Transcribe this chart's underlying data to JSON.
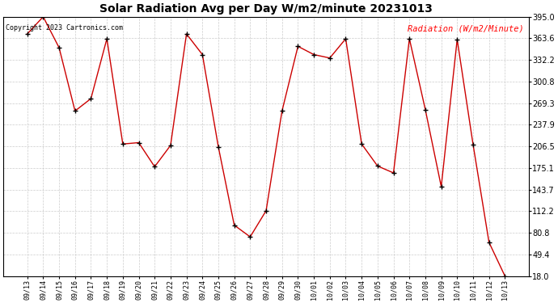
{
  "title": "Solar Radiation Avg per Day W/m2/minute 20231013",
  "copyright_text": "Copyright 2023 Cartronics.com",
  "legend_text": "Radiation (W/m2/Minute)",
  "background_color": "#ffffff",
  "grid_color": "#cccccc",
  "line_color": "#cc0000",
  "marker_color": "#000000",
  "labels": [
    "09/13",
    "09/14",
    "09/15",
    "09/16",
    "09/17",
    "09/18",
    "09/19",
    "09/20",
    "09/21",
    "09/22",
    "09/23",
    "09/24",
    "09/25",
    "09/26",
    "09/27",
    "09/28",
    "09/29",
    "09/30",
    "10/01",
    "10/02",
    "10/03",
    "10/04",
    "10/05",
    "10/06",
    "10/07",
    "10/08",
    "10/09",
    "10/10",
    "10/11",
    "10/12",
    "10/13"
  ],
  "values": [
    370,
    395,
    350,
    258,
    276,
    363,
    210,
    212,
    177,
    208,
    370,
    340,
    206,
    92,
    75,
    113,
    258,
    352,
    340,
    335,
    363,
    210,
    178,
    168,
    363,
    260,
    148,
    362,
    209,
    67,
    18
  ],
  "ylim": [
    18.0,
    395.0
  ],
  "yticks": [
    18.0,
    49.4,
    80.8,
    112.2,
    143.7,
    175.1,
    206.5,
    237.9,
    269.3,
    300.8,
    332.2,
    363.6,
    395.0
  ],
  "figwidth": 6.9,
  "figheight": 3.75,
  "dpi": 100
}
